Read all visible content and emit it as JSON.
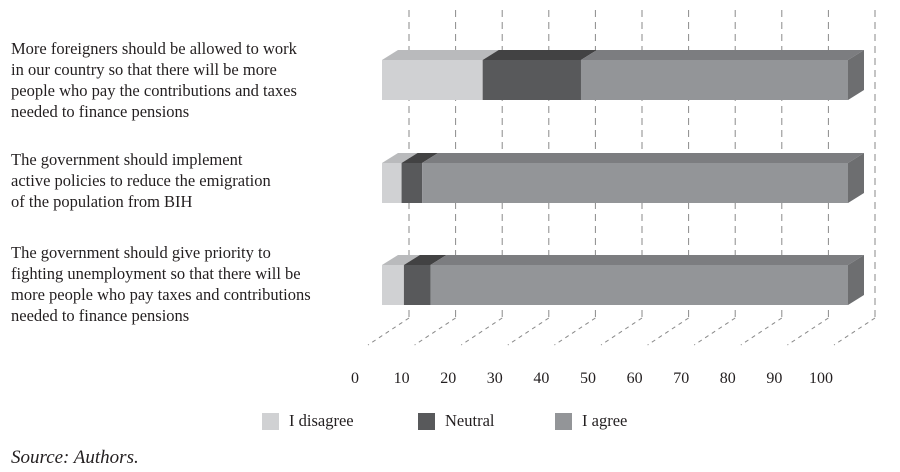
{
  "chart_data": {
    "type": "bar",
    "orientation": "horizontal",
    "stacked": true,
    "style": "3d",
    "categories": [
      "More foreigners should be allowed to work\nin our country so that there will be more\npeople who pay the contributions and taxes\nneeded to finance pensions",
      "The government should implement\nactive policies to reduce the emigration\nof the population from BIH",
      "The government should give priority to\nfighting unemployment so that there will be\nmore people who pay taxes and contributions\nneeded to finance pensions"
    ],
    "series": [
      {
        "name": "I disagree",
        "values": [
          21.6,
          4.2,
          4.7
        ],
        "color": "#d0d1d3",
        "top_color": "#b9babc"
      },
      {
        "name": "Neutral",
        "values": [
          21.1,
          4.4,
          5.7
        ],
        "color": "#58595b",
        "top_color": "#424243"
      },
      {
        "name": "I agree",
        "values": [
          57.3,
          91.4,
          89.6
        ],
        "color": "#939598",
        "top_color": "#7c7d80",
        "side_color": "#6d6e70"
      }
    ],
    "xlim": [
      0,
      100
    ],
    "xticks": [
      "0",
      "10",
      "20",
      "30",
      "40",
      "50",
      "60",
      "70",
      "80",
      "90",
      "100"
    ],
    "grid": true,
    "legend_position": "bottom",
    "title": "",
    "xlabel": "",
    "ylabel": ""
  },
  "source": "Source: Authors."
}
